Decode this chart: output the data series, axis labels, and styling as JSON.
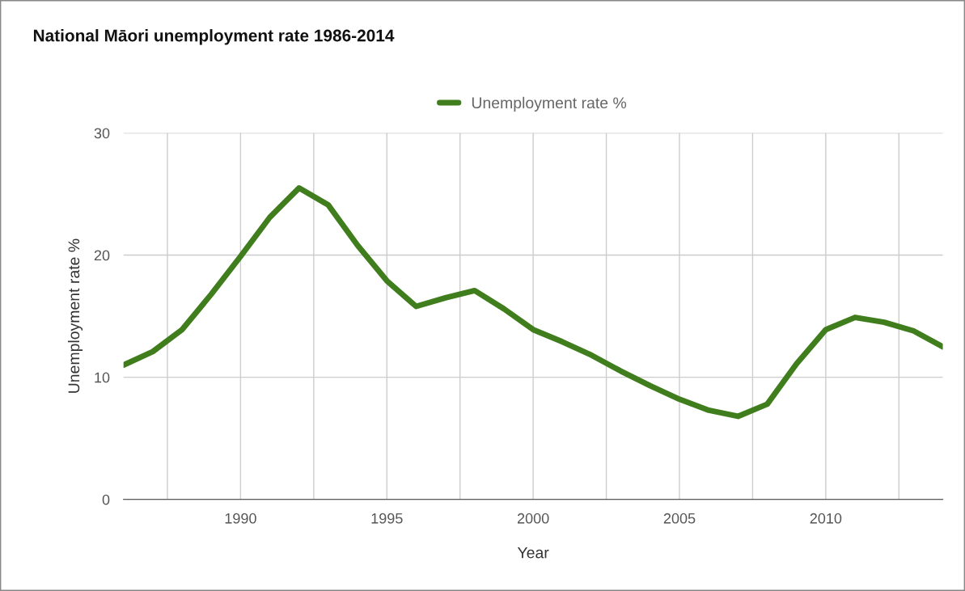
{
  "chart_data": {
    "type": "line",
    "title": "National Māori unemployment rate 1986-2014",
    "xlabel": "Year",
    "ylabel": "Unemployment rate %",
    "x": [
      1986,
      1987,
      1988,
      1989,
      1990,
      1991,
      1992,
      1993,
      1994,
      1995,
      1996,
      1997,
      1998,
      1999,
      2000,
      2001,
      2002,
      2003,
      2004,
      2005,
      2006,
      2007,
      2008,
      2009,
      2010,
      2011,
      2012,
      2013,
      2014
    ],
    "series": [
      {
        "name": "Unemployment rate %",
        "color": "#3f7d1d",
        "values": [
          11.0,
          12.1,
          13.9,
          16.8,
          19.9,
          23.1,
          25.5,
          24.1,
          20.8,
          17.9,
          15.8,
          16.5,
          17.1,
          15.6,
          13.9,
          12.9,
          11.8,
          10.5,
          9.3,
          8.2,
          7.3,
          6.8,
          7.8,
          11.1,
          13.9,
          14.9,
          14.5,
          13.8,
          12.5
        ]
      }
    ],
    "xlim": [
      1986,
      2014
    ],
    "ylim": [
      0,
      30
    ],
    "xticks": [
      {
        "value": 1987.5,
        "label": null
      },
      1990,
      {
        "value": 1992.5,
        "label": null
      },
      1995,
      {
        "value": 1997.5,
        "label": null
      },
      2000,
      {
        "value": 2002.5,
        "label": null
      },
      2005,
      {
        "value": 2007.5,
        "label": null
      },
      2010,
      {
        "value": 2012.5,
        "label": null
      }
    ],
    "yticks": [
      0,
      10,
      20,
      30
    ],
    "grid": true,
    "legend": "top",
    "marker": "none",
    "line_style": "solid"
  }
}
